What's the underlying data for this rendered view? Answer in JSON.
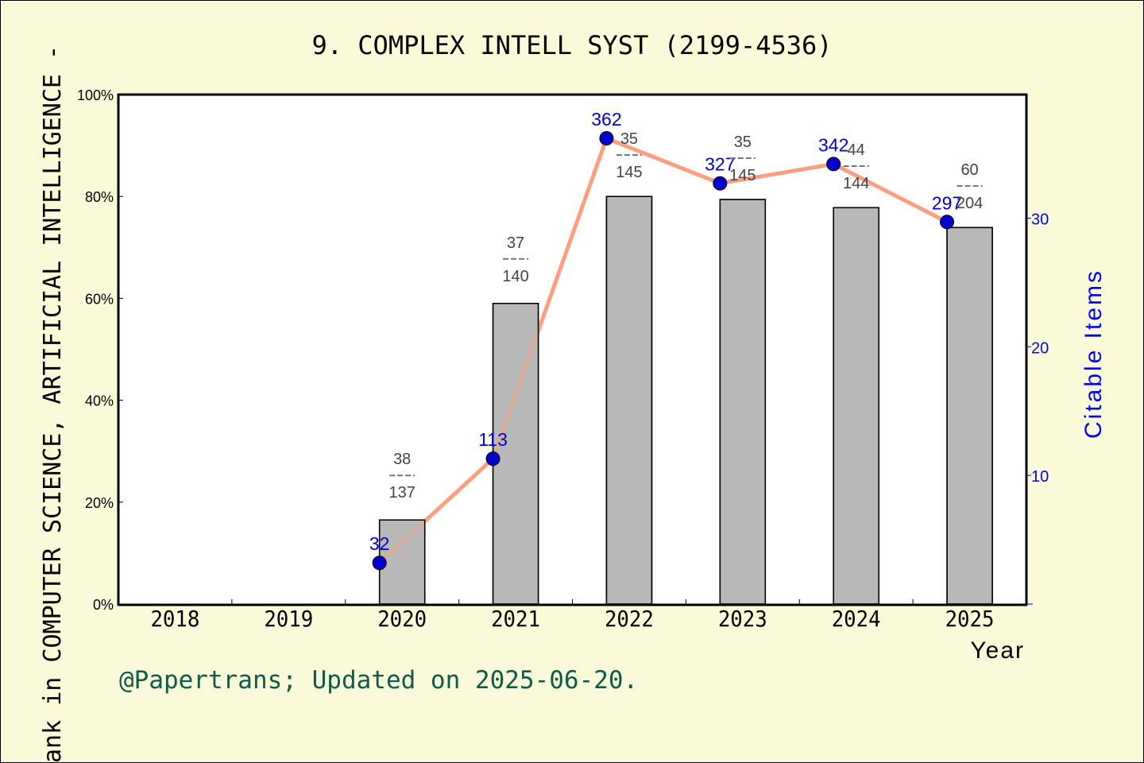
{
  "title": "9. COMPLEX INTELL SYST (2199-4536)",
  "y_left_label": "ank in COMPUTER SCIENCE, ARTIFICIAL INTELLIGENCE -",
  "y_right_label": "Citable Items",
  "x_label": "Year",
  "footer": "@Papertrans; Updated on 2025-06-20.",
  "colors": {
    "background": "#fafad8",
    "plot_bg": "#ffffff",
    "bar": "#b8b8b8",
    "line": "#ff9f7f",
    "point": "#0000cc",
    "point_label": "#0000cc",
    "rank_label": "#444444",
    "footer": "#0f5a4a"
  },
  "chart_data": {
    "type": "bar+line",
    "title": "9. COMPLEX INTELL SYST (2199-4536)",
    "xlabel": "Year",
    "ylabel": "...ank in COMPUTER SCIENCE, ARTIFICIAL INTELLIGENCE -",
    "ylabel_right": "Citable Items",
    "categories": [
      "2018",
      "2019",
      "2020",
      "2021",
      "2022",
      "2023",
      "2024",
      "2025"
    ],
    "y_left_ticks": [
      "0%",
      "20%",
      "40%",
      "60%",
      "80%",
      "100%"
    ],
    "y_left_range": [
      0,
      100
    ],
    "y_right_ticks": [
      "10",
      "20",
      "30"
    ],
    "y_right_range": [
      0,
      39.6
    ],
    "grid": false,
    "series": [
      {
        "name": "Rank percentile",
        "type": "bar",
        "axis": "left",
        "values": [
          null,
          null,
          16.5,
          59.0,
          80.0,
          79.4,
          77.8,
          73.9
        ]
      },
      {
        "name": "Citable Items",
        "type": "line",
        "axis": "right",
        "values": [
          null,
          null,
          32,
          113,
          362,
          327,
          342,
          297
        ],
        "plotted_scale": 0.1
      }
    ],
    "rank_annotations": [
      {
        "year": "2020",
        "rank": "38",
        "total": "137"
      },
      {
        "year": "2021",
        "rank": "37",
        "total": "140"
      },
      {
        "year": "2022",
        "rank": "35",
        "total": "145"
      },
      {
        "year": "2023",
        "rank": "35",
        "total": "145"
      },
      {
        "year": "2024",
        "rank": "44",
        "total": "144"
      },
      {
        "year": "2025",
        "rank": "60",
        "total": "204"
      }
    ]
  }
}
